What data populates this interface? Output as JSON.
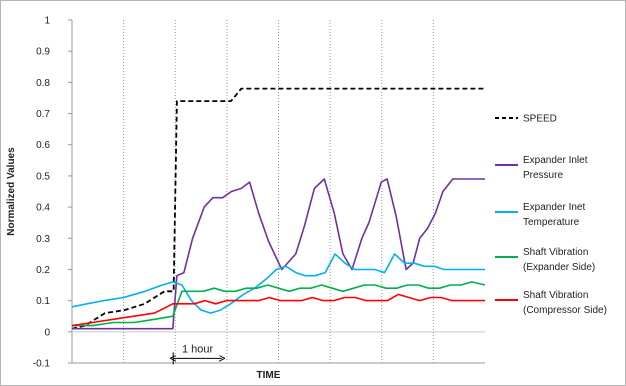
{
  "chart_data": {
    "type": "line",
    "title": "",
    "xlabel": "TIME",
    "ylabel": "Normalized Values",
    "ylim": [
      -0.1,
      1
    ],
    "xlim": [
      0,
      100
    ],
    "yticks": [
      -0.1,
      0,
      0.1,
      0.2,
      0.3,
      0.4,
      0.5,
      0.6,
      0.7,
      0.8,
      0.9,
      1
    ],
    "ytick_labels": [
      "-0.1",
      "0",
      "0.1",
      "0.2",
      "0.3",
      "0.4",
      "0.5",
      "0.6",
      "0.7",
      "0.8",
      "0.9",
      "1"
    ],
    "vertical_gridlines_x": [
      12.5,
      25,
      37.5,
      50,
      62.5,
      75,
      87.5
    ],
    "grid": "dotted vertical",
    "legend_placement": "right",
    "annotation": {
      "text": "1 hour",
      "x_start": 24.5,
      "x_end": 36.3,
      "y": -0.085
    },
    "series": [
      {
        "name": "SPEED",
        "color": "#000000",
        "dash": "dashed",
        "x": [
          0,
          3.2,
          5.6,
          8,
          10.4,
          12.8,
          15.2,
          17.6,
          20,
          22.4,
          24.6,
          25.4,
          35.3,
          38.5,
          41,
          100
        ],
        "y": [
          0.01,
          0.02,
          0.04,
          0.06,
          0.065,
          0.07,
          0.08,
          0.09,
          0.11,
          0.13,
          0.13,
          0.74,
          0.74,
          0.74,
          0.78,
          0.78
        ]
      },
      {
        "name": "Expander Inlet Pressure",
        "color": "#7030A0",
        "dash": "solid",
        "x": [
          0,
          15,
          21.9,
          23.3,
          24.4,
          25.4,
          27.1,
          29.2,
          32,
          34.1,
          36.5,
          38.6,
          41,
          43,
          45.2,
          47.6,
          50.8,
          54.2,
          56.3,
          58.7,
          61.1,
          63.5,
          65.6,
          67.8,
          70.2,
          71.9,
          74.9,
          76.3,
          78.5,
          80.9,
          82.6,
          84.2,
          86,
          88,
          89.8,
          92.2,
          94.6,
          97,
          100
        ],
        "y": [
          0.01,
          0.01,
          0.01,
          0.01,
          0.01,
          0.18,
          0.19,
          0.3,
          0.4,
          0.43,
          0.43,
          0.45,
          0.46,
          0.48,
          0.38,
          0.29,
          0.2,
          0.25,
          0.34,
          0.46,
          0.49,
          0.38,
          0.25,
          0.2,
          0.3,
          0.35,
          0.48,
          0.49,
          0.37,
          0.2,
          0.22,
          0.3,
          0.33,
          0.38,
          0.45,
          0.49,
          0.49,
          0.49,
          0.49
        ]
      },
      {
        "name": "Expander Inet Temperature",
        "color": "#00B0F0",
        "dash": "solid",
        "x": [
          0,
          3.6,
          7.8,
          12.5,
          17.7,
          21.9,
          24.4,
          26.6,
          28.9,
          31.2,
          33.6,
          36,
          38.4,
          41.5,
          44.2,
          47.1,
          49.5,
          51.8,
          54.2,
          56.5,
          58.9,
          61.3,
          63.7,
          66.1,
          68.5,
          70.9,
          73.3,
          75.7,
          78.1,
          80.5,
          82.9,
          85.3,
          87.7,
          90.1,
          92.5,
          95,
          97.4,
          100
        ],
        "y": [
          0.08,
          0.09,
          0.1,
          0.11,
          0.13,
          0.15,
          0.16,
          0.15,
          0.1,
          0.07,
          0.06,
          0.07,
          0.09,
          0.12,
          0.14,
          0.17,
          0.2,
          0.21,
          0.19,
          0.18,
          0.18,
          0.19,
          0.25,
          0.22,
          0.2,
          0.2,
          0.2,
          0.19,
          0.25,
          0.22,
          0.22,
          0.21,
          0.21,
          0.2,
          0.2,
          0.2,
          0.2,
          0.2
        ]
      },
      {
        "name": "Shaft Vibration (Expander Side)",
        "color": "#00B050",
        "dash": "solid",
        "x": [
          0,
          5,
          10,
          15,
          20,
          24.4,
          26.6,
          29.2,
          31.8,
          34.4,
          37,
          39.6,
          42.2,
          44.8,
          47.4,
          50,
          52.6,
          55.2,
          57.8,
          60.4,
          63,
          65.6,
          68.2,
          70.8,
          73.4,
          76,
          78.6,
          81.2,
          83.8,
          86.4,
          89,
          91.6,
          94.2,
          96.8,
          100
        ],
        "y": [
          0.02,
          0.02,
          0.03,
          0.03,
          0.04,
          0.05,
          0.13,
          0.13,
          0.13,
          0.14,
          0.13,
          0.13,
          0.14,
          0.14,
          0.15,
          0.14,
          0.13,
          0.14,
          0.14,
          0.15,
          0.14,
          0.13,
          0.14,
          0.15,
          0.15,
          0.14,
          0.14,
          0.15,
          0.15,
          0.14,
          0.14,
          0.15,
          0.15,
          0.16,
          0.15
        ]
      },
      {
        "name": "Shaft Vibration (Compressor Side)",
        "color": "#FF0000",
        "dash": "solid",
        "x": [
          0,
          5,
          10,
          15,
          20,
          24.4,
          27,
          29.6,
          32.2,
          34.8,
          37.4,
          40,
          42.6,
          45.2,
          47.8,
          50.4,
          53,
          55.6,
          58.2,
          60.8,
          63.4,
          66,
          68.6,
          71.2,
          73.8,
          76.4,
          79,
          81.6,
          84.2,
          86.8,
          89.4,
          92,
          94.6,
          97.2,
          100
        ],
        "y": [
          0.02,
          0.03,
          0.04,
          0.05,
          0.06,
          0.09,
          0.09,
          0.09,
          0.1,
          0.09,
          0.1,
          0.1,
          0.1,
          0.1,
          0.11,
          0.1,
          0.1,
          0.1,
          0.11,
          0.1,
          0.1,
          0.11,
          0.11,
          0.1,
          0.1,
          0.1,
          0.12,
          0.11,
          0.1,
          0.11,
          0.11,
          0.1,
          0.1,
          0.1,
          0.1
        ]
      }
    ],
    "legend": [
      {
        "line1": "SPEED",
        "line2": ""
      },
      {
        "line1": "Expander Inlet",
        "line2": "Pressure"
      },
      {
        "line1": "Expander Inet",
        "line2": "Temperature"
      },
      {
        "line1": "Shaft Vibration",
        "line2": "(Expander Side)"
      },
      {
        "line1": "Shaft Vibration",
        "line2": "(Compressor Side)"
      }
    ]
  }
}
